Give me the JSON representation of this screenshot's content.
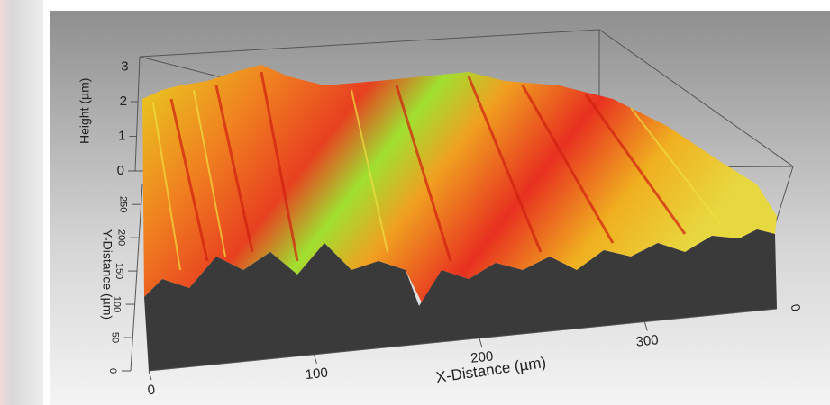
{
  "chart_data": {
    "type": "surface3d",
    "xlabel": "X-Distance (µm)",
    "ylabel": "Y-Distance (µm)",
    "zlabel": "Height (µm)",
    "xlim": [
      0,
      380
    ],
    "xticks": [
      0,
      100,
      200,
      300
    ],
    "ylim": [
      0,
      280
    ],
    "yticks": [
      0,
      50,
      100,
      150,
      200,
      250
    ],
    "zlim": [
      0,
      3.3
    ],
    "zticks": [
      0,
      1,
      2,
      3
    ],
    "annotations": [
      "0"
    ]
  }
}
